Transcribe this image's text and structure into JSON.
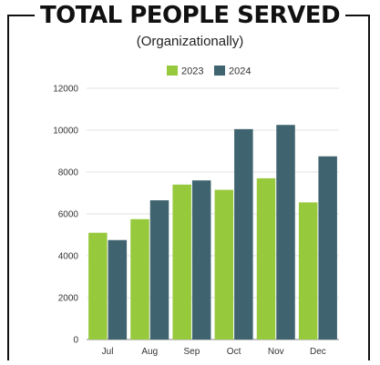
{
  "colors": {
    "s2023": "#97c93d",
    "s2024": "#3f6470"
  },
  "chart_data": {
    "type": "bar",
    "title": "TOTAL PEOPLE SERVED",
    "subtitle": "(Organizationally)",
    "categories": [
      "Jul",
      "Aug",
      "Sep",
      "Oct",
      "Nov",
      "Dec"
    ],
    "series": [
      {
        "name": "2023",
        "values": [
          5100,
          5750,
          7400,
          7150,
          7700,
          6550
        ]
      },
      {
        "name": "2024",
        "values": [
          4750,
          6650,
          7600,
          10050,
          10250,
          8750
        ]
      }
    ],
    "ylim": [
      0,
      12000
    ],
    "yticks": [
      "0",
      "2000",
      "4000",
      "6000",
      "8000",
      "10000",
      "12000"
    ],
    "grid": true,
    "legend": "top-center"
  }
}
